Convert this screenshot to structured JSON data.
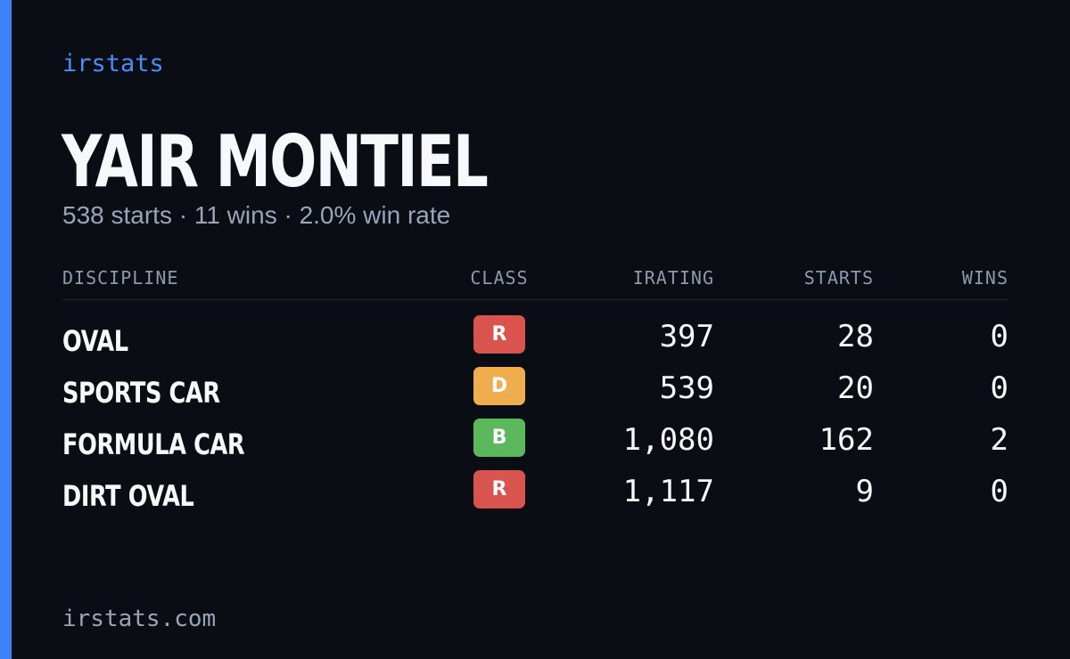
{
  "brand": "irstats",
  "driver": {
    "name": "YAIR MONTIEL",
    "summary": "538 starts · 11 wins · 2.0% win rate"
  },
  "table": {
    "headers": {
      "discipline": "DISCIPLINE",
      "class": "CLASS",
      "irating": "IRATING",
      "starts": "STARTS",
      "wins": "WINS"
    },
    "rows": [
      {
        "discipline": "OVAL",
        "class": "R",
        "class_color": "#d9534f",
        "irating": "397",
        "starts": "28",
        "wins": "0"
      },
      {
        "discipline": "SPORTS CAR",
        "class": "D",
        "class_color": "#f0ad4e",
        "irating": "539",
        "starts": "20",
        "wins": "0"
      },
      {
        "discipline": "FORMULA CAR",
        "class": "B",
        "class_color": "#5cb85c",
        "irating": "1,080",
        "starts": "162",
        "wins": "2"
      },
      {
        "discipline": "DIRT OVAL",
        "class": "R",
        "class_color": "#d9534f",
        "irating": "1,117",
        "starts": "9",
        "wins": "0"
      }
    ]
  },
  "footer": "irstats.com",
  "colors": {
    "accent": "#3b82f6",
    "background": "#0a0d14"
  }
}
